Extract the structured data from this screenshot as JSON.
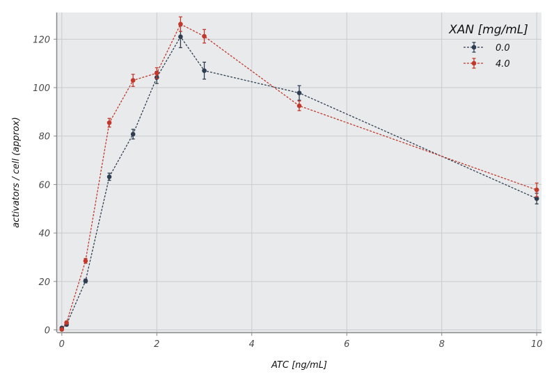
{
  "chart_data": {
    "type": "line",
    "xlabel": "ATC [ng/mL]",
    "ylabel": "activators / cell (approx)",
    "xlim": [
      -0.1,
      10.1
    ],
    "ylim": [
      -1,
      131
    ],
    "xticks": [
      0,
      2,
      4,
      6,
      8,
      10
    ],
    "yticks": [
      0,
      20,
      40,
      60,
      80,
      100,
      120
    ],
    "xtick_labels": [
      "0",
      "2",
      "4",
      "6",
      "8",
      "10"
    ],
    "ytick_labels": [
      "0",
      "20",
      "40",
      "60",
      "80",
      "100",
      "120"
    ],
    "grid": true,
    "legend_position": "top-right",
    "legend_title": "XAN [mg/mL]",
    "series": [
      {
        "name": "0.0",
        "color": "#2e3e50",
        "x": [
          0,
          0.1,
          0.5,
          1,
          1.5,
          2,
          2.5,
          3,
          5,
          10
        ],
        "y": [
          0.8,
          2.2,
          20.2,
          63.2,
          80.8,
          104.2,
          121.0,
          107.0,
          97.8,
          54.2
        ],
        "err": [
          0.4,
          0.6,
          0.8,
          1.5,
          2.0,
          2.5,
          4.5,
          3.5,
          3.0,
          2.2
        ]
      },
      {
        "name": "4.0",
        "color": "#c0392b",
        "x": [
          0,
          0.1,
          0.5,
          1,
          1.5,
          2,
          2.5,
          3,
          5,
          10
        ],
        "y": [
          0.2,
          3.0,
          28.5,
          85.5,
          103.0,
          106.0,
          126.2,
          121.2,
          92.5,
          57.8
        ],
        "err": [
          0.4,
          0.6,
          1.0,
          1.8,
          2.5,
          2.2,
          3.0,
          2.8,
          2.0,
          2.8
        ]
      }
    ]
  }
}
